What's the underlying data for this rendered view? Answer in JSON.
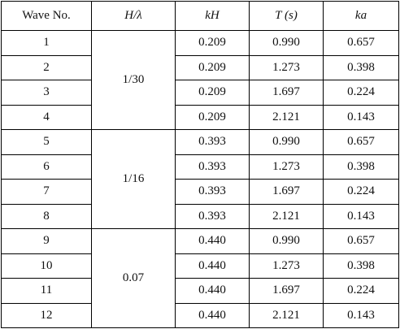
{
  "table": {
    "header": [
      "Wave No.",
      "H/λ",
      "kH",
      "T (s)",
      "ka"
    ],
    "groups": [
      {
        "ratio": "1/30",
        "rows": [
          [
            "1",
            "0.209",
            "0.990",
            "0.657"
          ],
          [
            "2",
            "0.209",
            "1.273",
            "0.398"
          ],
          [
            "3",
            "0.209",
            "1.697",
            "0.224"
          ],
          [
            "4",
            "0.209",
            "2.121",
            "0.143"
          ]
        ]
      },
      {
        "ratio": "1/16",
        "rows": [
          [
            "5",
            "0.393",
            "0.990",
            "0.657"
          ],
          [
            "6",
            "0.393",
            "1.273",
            "0.398"
          ],
          [
            "7",
            "0.393",
            "1.697",
            "0.224"
          ],
          [
            "8",
            "0.393",
            "2.121",
            "0.143"
          ]
        ]
      },
      {
        "ratio": "0.07",
        "rows": [
          [
            "9",
            "0.440",
            "0.990",
            "0.657"
          ],
          [
            "10",
            "0.440",
            "1.273",
            "0.398"
          ],
          [
            "11",
            "0.440",
            "1.697",
            "0.224"
          ],
          [
            "12",
            "0.440",
            "2.121",
            "0.143"
          ]
        ]
      }
    ]
  }
}
